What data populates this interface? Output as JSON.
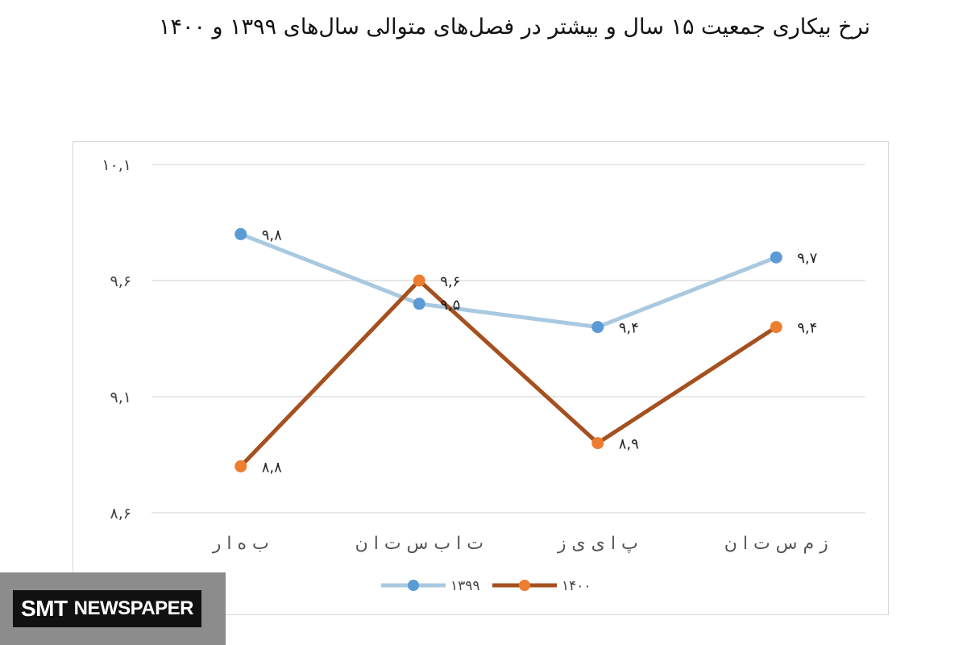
{
  "title": "نرخ بیکاری جمعیت ۱۵ سال و بیشتر در فصل‌های متوالی سال‌های ۱۳۹۹ و ۱۴۰۰",
  "watermark": {
    "part1": "SMT",
    "part2": "NEWSPAPER"
  },
  "colors": {
    "series_1399": "#a9c9e0",
    "series_1399_marker": "#5b9bd5",
    "series_1400": "#a5501f",
    "series_1400_marker": "#ed7d31",
    "grid": "#d9d9d9"
  },
  "chart_data": {
    "type": "line",
    "categories": [
      "بهار",
      "تابستان",
      "پاییز",
      "زمستان"
    ],
    "category_labels": [
      "ب ه ا ر",
      "ت ا ب س ت ا ن",
      "پ ا ی ی ز",
      "ز م س ت ا ن"
    ],
    "ylim": [
      8.6,
      10.1
    ],
    "yticks": [
      8.6,
      9.1,
      9.6,
      10.1
    ],
    "ytick_labels": [
      "۸,۶",
      "۹,۱",
      "۹,۶",
      "۱۰,۱"
    ],
    "grid": true,
    "legend_position": "bottom",
    "series": [
      {
        "name": "۱۳۹۹",
        "values": [
          9.8,
          9.5,
          9.4,
          9.7
        ],
        "labels": [
          "۹,۸",
          "۹,۵",
          "۹,۴",
          "۹,۷"
        ]
      },
      {
        "name": "۱۴۰۰",
        "values": [
          8.8,
          9.6,
          8.9,
          9.4
        ],
        "labels": [
          "۸,۸",
          "۹,۶",
          "۸,۹",
          "۹,۴"
        ]
      }
    ]
  }
}
